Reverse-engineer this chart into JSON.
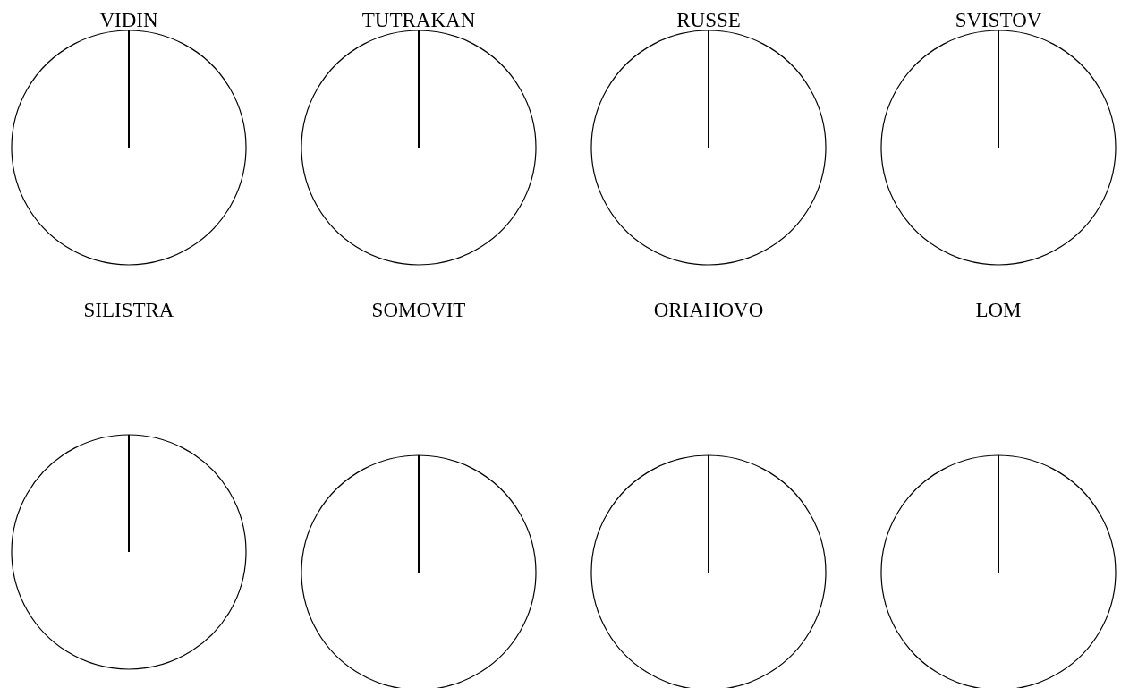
{
  "chart_data": [
    {
      "type": "pie",
      "title": "VIDIN",
      "categories": [
        null
      ],
      "values": [
        100
      ],
      "colors": [
        "#ffffff"
      ]
    },
    {
      "type": "pie",
      "title": "TUTRAKAN",
      "categories": [
        null
      ],
      "values": [
        100
      ],
      "colors": [
        "#ffffff"
      ]
    },
    {
      "type": "pie",
      "title": "RUSSE",
      "categories": [
        null
      ],
      "values": [
        100
      ],
      "colors": [
        "#ffffff"
      ]
    },
    {
      "type": "pie",
      "title": "SVISTOV",
      "categories": [
        null
      ],
      "values": [
        100
      ],
      "colors": [
        "#ffffff"
      ]
    },
    {
      "type": "pie",
      "title": "SILISTRA",
      "categories": [
        null
      ],
      "values": [
        100
      ],
      "colors": [
        "#ffffff"
      ]
    },
    {
      "type": "pie",
      "title": "SOMOVIT",
      "categories": [
        null
      ],
      "values": [
        100
      ],
      "colors": [
        "#ffffff"
      ]
    },
    {
      "type": "pie",
      "title": "ORIAHOVO",
      "categories": [
        null
      ],
      "values": [
        100
      ],
      "colors": [
        "#ffffff"
      ]
    },
    {
      "type": "pie",
      "title": "LOM",
      "categories": [
        null
      ],
      "values": [
        100
      ],
      "colors": [
        "#ffffff"
      ]
    }
  ]
}
